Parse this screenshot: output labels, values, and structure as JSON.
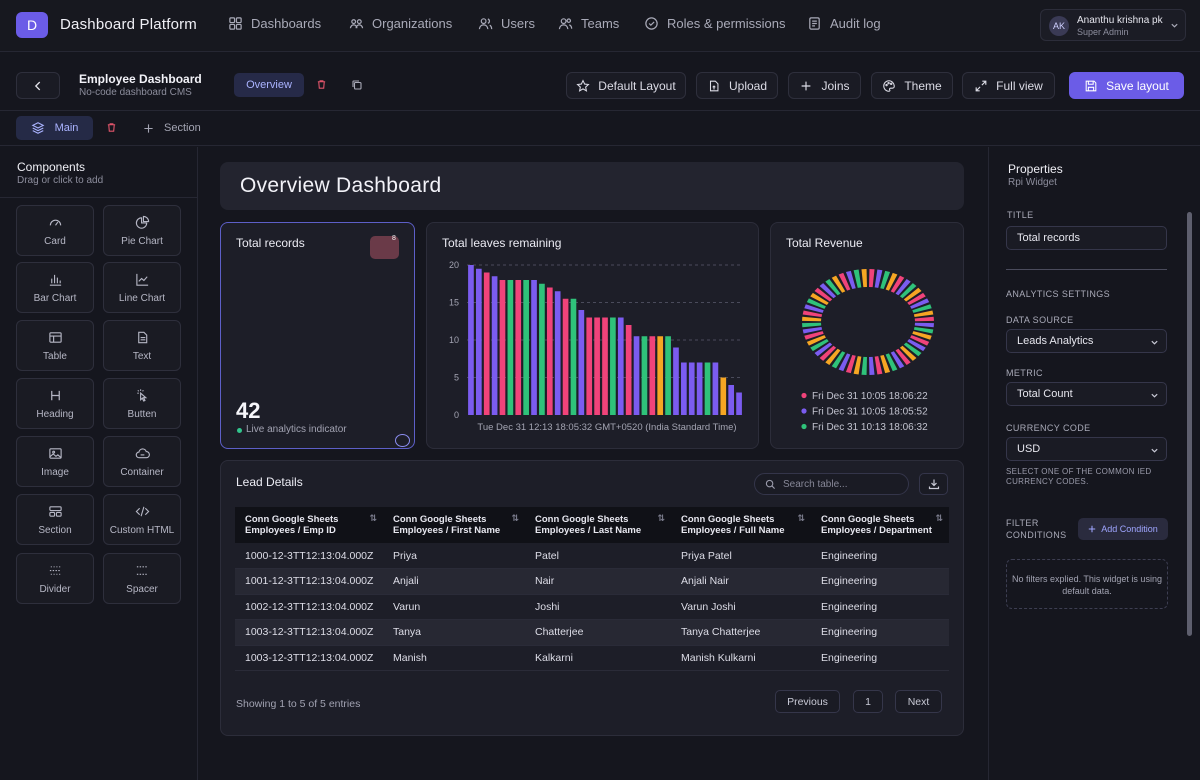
{
  "app": {
    "logo_letter": "D",
    "title": "Dashboard Platform"
  },
  "nav": [
    {
      "label": "Dashboards",
      "icon": "grid-icon"
    },
    {
      "label": "Organizations",
      "icon": "organizations-icon"
    },
    {
      "label": "Users",
      "icon": "users-icon"
    },
    {
      "label": "Teams",
      "icon": "teams-icon"
    },
    {
      "label": "Roles & permissions",
      "icon": "shield-icon"
    },
    {
      "label": "Audit log",
      "icon": "audit-log-icon"
    }
  ],
  "user": {
    "initials": "AK",
    "name": "Ananthu krishna pk",
    "role": "Super Admin"
  },
  "toolbar": {
    "dashboard_title": "Employee Dashboard",
    "dashboard_subtitle": "No-code dashboard CMS",
    "overview_tab": "Overview",
    "buttons": {
      "default_layout": "Default Layout",
      "upload": "Upload",
      "joins": "Joins",
      "theme": "Theme",
      "full_view": "Full view",
      "save_layout": "Save layout"
    }
  },
  "sections": {
    "main_tab": "Main",
    "add_section": "Section"
  },
  "components": {
    "title": "Components",
    "subtitle": "Drag or click to add",
    "items": [
      {
        "label": "Card",
        "icon": "gauge-icon"
      },
      {
        "label": "Pie Chart",
        "icon": "pie-chart-icon"
      },
      {
        "label": "Bar Chart",
        "icon": "bar-chart-icon"
      },
      {
        "label": "Line Chart",
        "icon": "line-chart-icon"
      },
      {
        "label": "Table",
        "icon": "table-icon"
      },
      {
        "label": "Text",
        "icon": "text-icon"
      },
      {
        "label": "Heading",
        "icon": "heading-icon"
      },
      {
        "label": "Butten",
        "icon": "pointer-icon"
      },
      {
        "label": "Image",
        "icon": "image-icon"
      },
      {
        "label": "Container",
        "icon": "container-icon"
      },
      {
        "label": "Section",
        "icon": "section-icon"
      },
      {
        "label": "Custom HTML",
        "icon": "code-icon"
      },
      {
        "label": "Divider",
        "icon": "divider-icon"
      },
      {
        "label": "Spacer",
        "icon": "spacer-icon"
      }
    ]
  },
  "canvas": {
    "title": "Overview Dashboard",
    "kpi": {
      "title": "Total records",
      "badge": "8",
      "value": "42",
      "subtitle": "Live analytics indicator"
    },
    "bar": {
      "title": "Total leaves remaining"
    },
    "pie": {
      "title": "Total Revenue"
    }
  },
  "table": {
    "title": "Lead Details",
    "search_placeholder": "Search table...",
    "columns": [
      {
        "line1": "Conn Google Sheets",
        "line2": "Employees / Emp ID"
      },
      {
        "line1": "Conn Google Sheets",
        "line2": "Employees / First Name"
      },
      {
        "line1": "Conn Google Sheets",
        "line2": "Employees / Last Name"
      },
      {
        "line1": "Conn Google Sheets",
        "line2": "Employees / Full Name"
      },
      {
        "line1": "Conn Google Sheets",
        "line2": "Employees / Department"
      }
    ],
    "rows": [
      [
        "1000-12-3TT12:13:04.000Z",
        "Priya",
        "Patel",
        "Priya Patel",
        "Engineering"
      ],
      [
        "1001-12-3TT12:13:04.000Z",
        "Anjali",
        "Nair",
        "Anjali Nair",
        "Engineering"
      ],
      [
        "1002-12-3TT12:13:04.000Z",
        "Varun",
        "Joshi",
        "Varun Joshi",
        "Engineering"
      ],
      [
        "1003-12-3TT12:13:04.000Z",
        "Tanya",
        "Chatterjee",
        "Tanya Chatterjee",
        "Engineering"
      ],
      [
        "1003-12-3TT12:13:04.000Z",
        "Manish",
        "Kalkarni",
        "Manish Kulkarni",
        "Engineering"
      ]
    ],
    "showing": "Showing 1 to 5 of 5 entries",
    "prev": "Previous",
    "page": "1",
    "next": "Next"
  },
  "properties": {
    "title": "Properties",
    "subtitle": "Rpi Widget",
    "title_label": "TITLE",
    "title_value": "Total records",
    "analytics_heading": "ANALYTICS SETTINGS",
    "data_source_label": "DATA SOURCE",
    "data_source_value": "Leads Analytics",
    "metric_label": "METRIC",
    "metric_value": "Total Count",
    "currency_label": "CURRENCY CODE",
    "currency_value": "USD",
    "currency_help": "SELECT ONE OF THE COMMON IED CURRENCY CODES.",
    "filter_label": "FILTER CONDITIONS",
    "add_condition": "Add Condition",
    "no_filters": "No filters explied. This widget is using default data."
  },
  "colors": {
    "accent": "#6b5ce7",
    "purple": "#7b5cf0",
    "pink": "#f0437a",
    "green": "#2fc27a",
    "orange": "#f6a623"
  },
  "chart_data": [
    {
      "type": "bar",
      "title": "Total leaves remaining",
      "xlabel": "Tue Dec 31 12:13 18:05:32 GMT+0520 (India Standard Time)",
      "ylabel": "",
      "ylim": [
        0,
        20
      ],
      "yticks": [
        0,
        5,
        10,
        15,
        20
      ],
      "grid": true,
      "values": [
        20,
        19.5,
        19,
        18.5,
        18,
        18,
        18,
        18,
        18,
        17.5,
        17,
        16.5,
        15.5,
        15.5,
        14,
        13,
        13,
        13,
        13,
        13,
        12,
        10.5,
        10.5,
        10.5,
        10.5,
        10.5,
        9,
        7,
        7,
        7,
        7,
        7,
        5,
        4,
        3
      ],
      "colors": [
        "purple",
        "purple",
        "pink",
        "purple",
        "pink",
        "green",
        "pink",
        "green",
        "purple",
        "green",
        "pink",
        "purple",
        "pink",
        "green",
        "purple",
        "pink",
        "pink",
        "pink",
        "green",
        "purple",
        "pink",
        "purple",
        "green",
        "pink",
        "orange",
        "green",
        "purple",
        "purple",
        "purple",
        "purple",
        "green",
        "purple",
        "orange",
        "purple",
        "purple"
      ]
    },
    {
      "type": "pie",
      "title": "Total Revenue",
      "legend": [
        "Fri Dec 31 10:05 18:06:22",
        "Fri Dec 31 10:05 18:05:52",
        "Fri Dec 31 10:13 18:06:32"
      ],
      "legend_colors": [
        "pink",
        "purple",
        "green"
      ],
      "legend_position": "bottom",
      "slices": 52,
      "slice_colors": [
        "pink",
        "purple",
        "green",
        "orange"
      ]
    }
  ]
}
